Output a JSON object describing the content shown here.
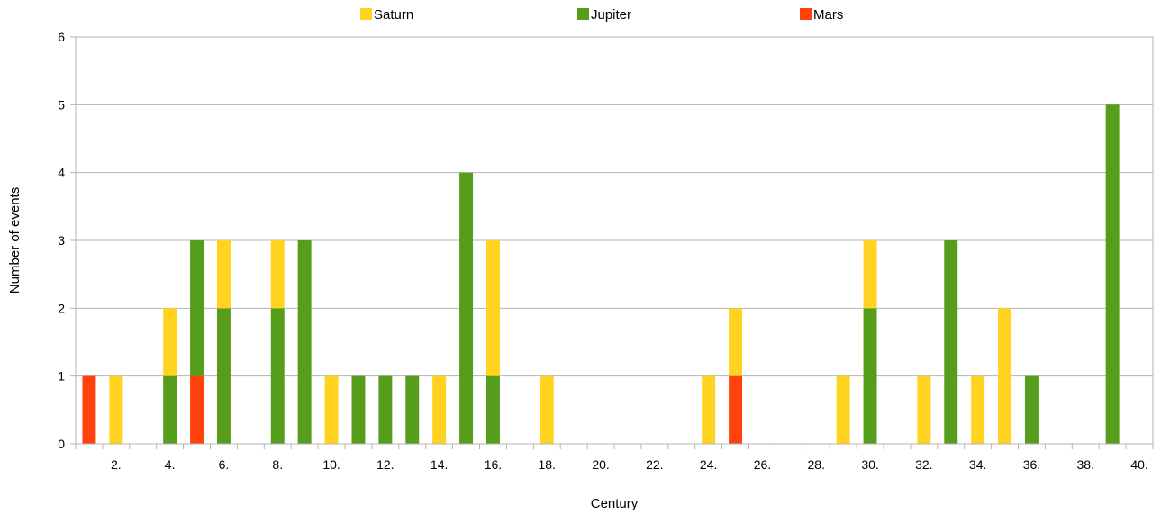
{
  "chart_data": {
    "type": "bar",
    "stacked": true,
    "title": "",
    "xlabel": "Century",
    "ylabel": "Number of events",
    "ylim": [
      0,
      6
    ],
    "yticks": [
      "0",
      "1",
      "2",
      "3",
      "4",
      "5",
      "6"
    ],
    "x": [
      1,
      2,
      3,
      4,
      5,
      6,
      7,
      8,
      9,
      10,
      11,
      12,
      13,
      14,
      15,
      16,
      17,
      18,
      19,
      20,
      21,
      22,
      23,
      24,
      25,
      26,
      27,
      28,
      29,
      30,
      31,
      32,
      33,
      34,
      35,
      36,
      37,
      38,
      39,
      40
    ],
    "x_tick_labels": [
      "2.",
      "4.",
      "6.",
      "8.",
      "10.",
      "12.",
      "14.",
      "16.",
      "18.",
      "20.",
      "22.",
      "24.",
      "26.",
      "28.",
      "30.",
      "32.",
      "34.",
      "36.",
      "38.",
      "40."
    ],
    "grid": true,
    "legend_position": "top",
    "series": [
      {
        "name": "Mars",
        "color": "#ff420e",
        "values": [
          1,
          0,
          0,
          0,
          1,
          0,
          0,
          0,
          0,
          0,
          0,
          0,
          0,
          0,
          0,
          0,
          0,
          0,
          0,
          0,
          0,
          0,
          0,
          0,
          1,
          0,
          0,
          0,
          0,
          0,
          0,
          0,
          0,
          0,
          0,
          0,
          0,
          0,
          0,
          0
        ]
      },
      {
        "name": "Jupiter",
        "color": "#579d1c",
        "values": [
          0,
          0,
          0,
          1,
          2,
          2,
          0,
          2,
          3,
          0,
          1,
          1,
          1,
          0,
          4,
          1,
          0,
          0,
          0,
          0,
          0,
          0,
          0,
          0,
          0,
          0,
          0,
          0,
          0,
          2,
          0,
          0,
          3,
          0,
          0,
          1,
          0,
          0,
          5,
          0
        ]
      },
      {
        "name": "Saturn",
        "color": "#ffd320",
        "values": [
          0,
          1,
          0,
          1,
          0,
          1,
          0,
          1,
          0,
          1,
          0,
          0,
          0,
          1,
          0,
          2,
          0,
          1,
          0,
          0,
          0,
          0,
          0,
          1,
          1,
          0,
          0,
          0,
          1,
          1,
          0,
          1,
          0,
          1,
          2,
          0,
          0,
          0,
          0,
          0
        ]
      }
    ],
    "legend_order": [
      "Saturn",
      "Jupiter",
      "Mars"
    ]
  }
}
